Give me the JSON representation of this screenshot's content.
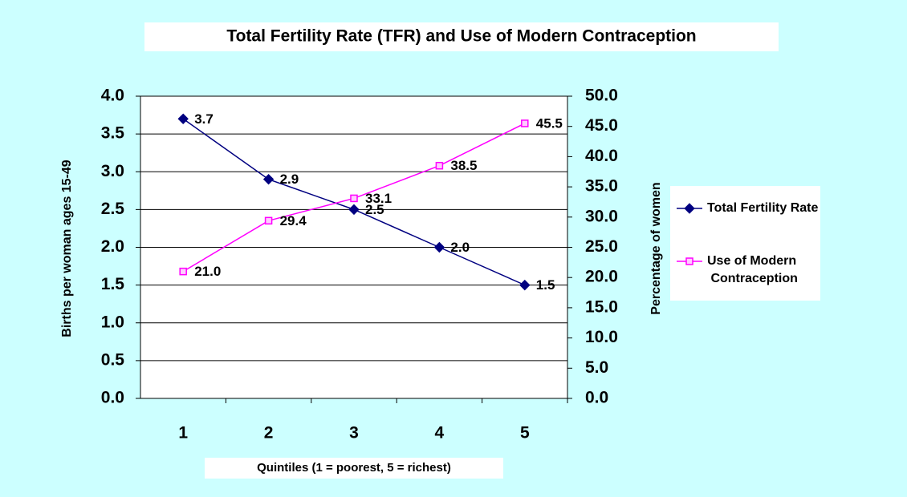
{
  "chart_data": {
    "type": "line",
    "title": "Total Fertility Rate (TFR) and Use of Modern Contraception",
    "x_label": "Quintiles (1 = poorest,  5 = richest)",
    "y_label": "Births per woman ages 15-49",
    "y2_label": "Percentage of women",
    "categories": [
      "1",
      "2",
      "3",
      "4",
      "5"
    ],
    "series": [
      {
        "name": "Total Fertility Rate",
        "color": "#000080",
        "marker": "diamond",
        "values": [
          3.7,
          2.9,
          2.5,
          2.0,
          1.5
        ],
        "value_labels": [
          "3.7",
          "2.9",
          "2.5",
          "2.0",
          "1.5"
        ]
      },
      {
        "name": "Use of Modern Contraception",
        "color": "#ff00ff",
        "marker": "square",
        "axis": "y2",
        "values": [
          21.0,
          29.4,
          33.1,
          38.5,
          45.5
        ],
        "value_labels": [
          "21.0",
          "29.4",
          "33.1",
          "38.5",
          "45.5"
        ]
      }
    ],
    "ylim": [
      0,
      4
    ],
    "yticks": [
      {
        "value": 0,
        "label": "0.0"
      },
      0.5,
      {
        "value": 1,
        "label": "1.0"
      },
      1.5,
      {
        "value": 2,
        "label": "2.0"
      },
      2.5,
      {
        "value": 3,
        "label": "3.0"
      },
      3.5,
      {
        "value": 4,
        "label": "4.0"
      }
    ],
    "y2lim": [
      0,
      50
    ],
    "y2ticks": [
      {
        "value": 0,
        "label": "0.0"
      },
      {
        "value": 5,
        "label": "5.0"
      },
      {
        "value": 10,
        "label": "10.0"
      },
      {
        "value": 15,
        "label": "15.0"
      },
      {
        "value": 20,
        "label": "20.0"
      },
      {
        "value": 25,
        "label": "25.0"
      },
      {
        "value": 30,
        "label": "30.0"
      },
      {
        "value": 35,
        "label": "35.0"
      },
      {
        "value": 40,
        "label": "40.0"
      },
      {
        "value": 45,
        "label": "45.0"
      },
      {
        "value": 50,
        "label": "50.0"
      }
    ],
    "grid": true,
    "legend": "right"
  }
}
